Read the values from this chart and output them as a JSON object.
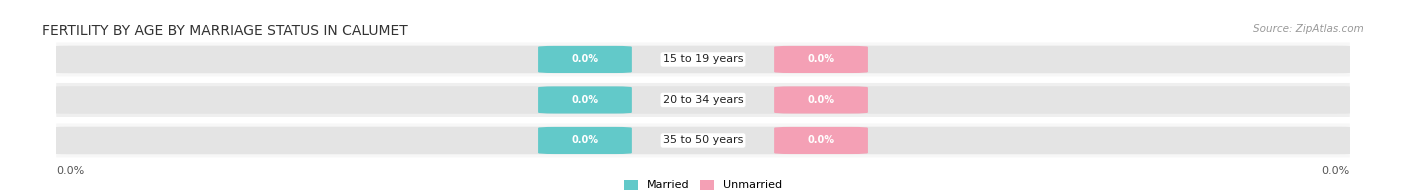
{
  "title": "FERTILITY BY AGE BY MARRIAGE STATUS IN CALUMET",
  "source": "Source: ZipAtlas.com",
  "categories": [
    "15 to 19 years",
    "20 to 34 years",
    "35 to 50 years"
  ],
  "married_values": [
    "0.0%",
    "0.0%",
    "0.0%"
  ],
  "unmarried_values": [
    "0.0%",
    "0.0%",
    "0.0%"
  ],
  "married_color": "#62C9C9",
  "unmarried_color": "#F4A0B5",
  "bar_bg_color": "#E4E4E4",
  "row_bg_even": "#EFEFEF",
  "row_bg_odd": "#F7F7F7",
  "axis_left_label": "0.0%",
  "axis_right_label": "0.0%",
  "legend_married": "Married",
  "legend_unmarried": "Unmarried",
  "background_color": "#FFFFFF",
  "title_fontsize": 10,
  "source_fontsize": 7.5,
  "cat_fontsize": 8,
  "val_fontsize": 7,
  "axis_label_fontsize": 8,
  "legend_fontsize": 8
}
